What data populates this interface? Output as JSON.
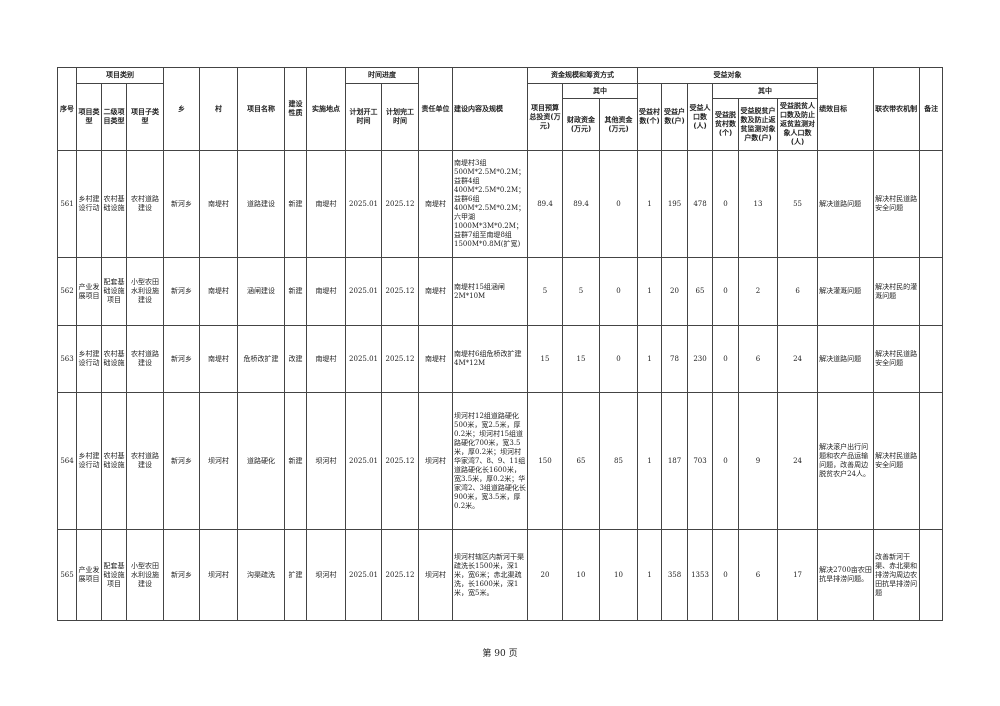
{
  "header": {
    "group_category": "项目类别",
    "group_time": "时间进度",
    "group_funds": "资金规模和筹资方式",
    "group_benefit": "受益对象",
    "of_which": "其中",
    "cols": [
      "序号",
      "项目类型",
      "二级项目类型",
      "项目子类型",
      "乡",
      "村",
      "项目名称",
      "建设性质",
      "实施地点",
      "计划开工时间",
      "计划完工时间",
      "责任单位",
      "建设内容及规模",
      "项目预算总投资(万元)",
      "财政资金(万元)",
      "其他资金(万元)",
      "受益村数(个)",
      "受益户数(户)",
      "受益人口数(人)",
      "受益脱贫村数(个)",
      "受益脱贫户数及防止返贫监测对象户数(户)",
      "受益脱贫人口数及防止返贫监测对象人口数(人)",
      "绩效目标",
      "联农带农机制",
      "备注"
    ]
  },
  "rows": [
    [
      "561",
      "乡村建设行动",
      "农村基础设施",
      "农村道路建设",
      "新河乡",
      "南堤村",
      "道路建设",
      "新建",
      "南堤村",
      "2025.01",
      "2025.12",
      "南堤村",
      "南堤村3组500M*2.5M*0.2M；益群4组400M*2.5M*0.2M；益群6组400M*2.5M*0.2M；六甲湖1000M*3M*0.2M；益群7组至南堤8组1500M*0.8M(扩宽)",
      "89.4",
      "89.4",
      "0",
      "1",
      "195",
      "478",
      "0",
      "13",
      "55",
      "解决道路问题",
      "解决村民道路安全问题",
      ""
    ],
    [
      "562",
      "产业发展项目",
      "配套基础设施项目",
      "小型农田水利设施建设",
      "新河乡",
      "南堤村",
      "涵闸建设",
      "新建",
      "南堤村",
      "2025.01",
      "2025.12",
      "南堤村",
      "南堤村15组涵闸2M*10M",
      "5",
      "5",
      "0",
      "1",
      "20",
      "65",
      "0",
      "2",
      "6",
      "解决灌溉问题",
      "解决村民的灌溉问题",
      ""
    ],
    [
      "563",
      "乡村建设行动",
      "农村基础设施",
      "农村道路建设",
      "新河乡",
      "南堤村",
      "危桥改扩建",
      "改建",
      "南堤村",
      "2025.01",
      "2025.12",
      "南堤村",
      "南堤村6组危桥改扩建 4M*12M",
      "15",
      "15",
      "0",
      "1",
      "78",
      "230",
      "0",
      "6",
      "24",
      "解决道路问题",
      "解决村民道路安全问题",
      ""
    ],
    [
      "564",
      "乡村建设行动",
      "农村基础设施",
      "农村道路建设",
      "新河乡",
      "坝河村",
      "道路硬化",
      "新建",
      "坝河村",
      "2025.01",
      "2025.12",
      "坝河村",
      "坝河村12组道路硬化500米，宽2.5米，厚0.2米；坝河村15组道路硬化700米，宽3.5米，厚0.2米；坝河村华家湾7、8、9、11组道路硬化长1600米，宽3.5米，厚0.2米；华家湾2、3组道路硬化长900米，宽3.5米，厚0.2米。",
      "150",
      "65",
      "85",
      "1",
      "187",
      "703",
      "0",
      "9",
      "24",
      "解决滚户出行问题和农产品运输问题，改善周边脱贫农户24人。",
      "解决村民道路安全问题",
      ""
    ],
    [
      "565",
      "产业发展项目",
      "配套基础设施项目",
      "小型农田水利设施建设",
      "新河乡",
      "坝河村",
      "沟渠疏洗",
      "扩建",
      "坝河村",
      "2025.01",
      "2025.12",
      "坝河村",
      "坝河村辖区内新河干渠疏洗长1500米，深1米，宽6米；赤北渠疏洗，长1600米，深1米，宽5米。",
      "20",
      "10",
      "10",
      "1",
      "358",
      "1353",
      "0",
      "6",
      "17",
      "解决2700亩农田抗旱排涝问题。",
      "改善新河干渠、赤北渠和排涝沟周边农田抗旱排涝问题",
      ""
    ]
  ],
  "footer": {
    "page": "第 90 页"
  }
}
